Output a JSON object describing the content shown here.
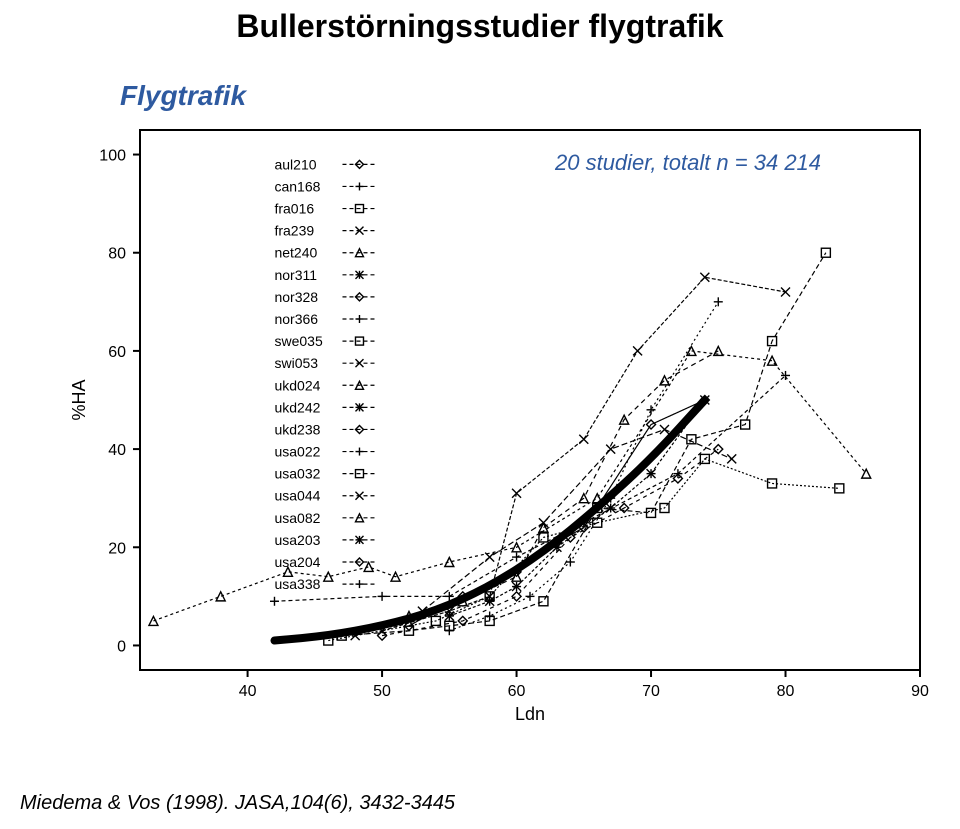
{
  "title": {
    "text": "Bullerstörningsstudier flygtrafik",
    "fontsize": 32,
    "color": "#000000",
    "weight": "bold"
  },
  "subtitle": {
    "text": "Flygtrafik",
    "fontsize": 28,
    "color": "#2e5aa0",
    "style": "italic bold"
  },
  "note": {
    "text": "20 studier, totalt n = 34 214",
    "fontsize": 22,
    "color": "#2e5aa0",
    "style": "italic"
  },
  "citation": {
    "text": "Miedema & Vos (1998). JASA,104(6), 3432-3445",
    "fontsize": 20,
    "color": "#000000",
    "style": "italic"
  },
  "chart": {
    "type": "line-scatter",
    "background_color": "#ffffff",
    "axis_color": "#000000",
    "tick_color": "#000000",
    "tick_fontsize": 16,
    "label_fontsize": 18,
    "xlabel": "Ldn",
    "ylabel": "%HA",
    "xlim": [
      32,
      90
    ],
    "ylim": [
      -5,
      105
    ],
    "xticks": [
      40,
      50,
      60,
      70,
      80,
      90
    ],
    "yticks": [
      0,
      20,
      40,
      60,
      80,
      100
    ],
    "legend": {
      "x": 42,
      "y_top": 98,
      "line_spacing": 4.5,
      "fontsize": 14,
      "color": "#000000",
      "items": [
        {
          "label": "aul210",
          "marker": "diamond"
        },
        {
          "label": "can168",
          "marker": "plus"
        },
        {
          "label": "fra016",
          "marker": "square"
        },
        {
          "label": "fra239",
          "marker": "xmark"
        },
        {
          "label": "net240",
          "marker": "triangle"
        },
        {
          "label": "nor311",
          "marker": "asterisk"
        },
        {
          "label": "nor328",
          "marker": "diamond"
        },
        {
          "label": "nor366",
          "marker": "plus"
        },
        {
          "label": "swe035",
          "marker": "square"
        },
        {
          "label": "swi053",
          "marker": "xmark"
        },
        {
          "label": "ukd024",
          "marker": "triangle"
        },
        {
          "label": "ukd242",
          "marker": "asterisk"
        },
        {
          "label": "ukd238",
          "marker": "diamond"
        },
        {
          "label": "usa022",
          "marker": "plus"
        },
        {
          "label": "usa032",
          "marker": "square"
        },
        {
          "label": "usa044",
          "marker": "xmark"
        },
        {
          "label": "usa082",
          "marker": "triangle"
        },
        {
          "label": "usa203",
          "marker": "asterisk"
        },
        {
          "label": "usa204",
          "marker": "diamond"
        },
        {
          "label": "usa338",
          "marker": "plus"
        }
      ]
    },
    "series": [
      {
        "marker": "triangle",
        "dash": "3,3",
        "points": [
          [
            33,
            5
          ],
          [
            38,
            10
          ],
          [
            43,
            15
          ],
          [
            46,
            14
          ],
          [
            49,
            16
          ],
          [
            51,
            14
          ],
          [
            55,
            17
          ],
          [
            60,
            20
          ],
          [
            66,
            30
          ],
          [
            73,
            60
          ],
          [
            79,
            58
          ],
          [
            86,
            35
          ]
        ]
      },
      {
        "marker": "plus",
        "dash": "4,3",
        "points": [
          [
            42,
            9
          ],
          [
            50,
            10
          ],
          [
            55,
            10
          ],
          [
            60,
            18
          ],
          [
            65,
            25
          ],
          [
            72,
            35
          ],
          [
            80,
            55
          ]
        ]
      },
      {
        "marker": "square",
        "dash": "5,3",
        "points": [
          [
            47,
            2
          ],
          [
            52,
            3
          ],
          [
            55,
            4
          ],
          [
            58,
            5
          ],
          [
            62,
            9
          ],
          [
            66,
            28
          ],
          [
            70,
            27
          ],
          [
            73,
            42
          ],
          [
            77,
            45
          ],
          [
            79,
            62
          ],
          [
            83,
            80
          ]
        ]
      },
      {
        "marker": "xmark",
        "dash": "4,2",
        "points": [
          [
            50,
            3
          ],
          [
            55,
            7
          ],
          [
            58,
            10
          ],
          [
            60,
            31
          ],
          [
            65,
            42
          ],
          [
            69,
            60
          ],
          [
            74,
            75
          ],
          [
            80,
            72
          ]
        ]
      },
      {
        "marker": "diamond",
        "dash": "1,0",
        "points": [
          [
            52,
            4
          ],
          [
            56,
            10
          ],
          [
            60,
            15
          ],
          [
            63,
            21
          ],
          [
            65,
            24
          ],
          [
            70,
            45
          ],
          [
            74,
            50
          ]
        ]
      },
      {
        "marker": "asterisk",
        "dash": "3,2",
        "points": [
          [
            55,
            6
          ],
          [
            58,
            9
          ],
          [
            60,
            12
          ],
          [
            63,
            20
          ],
          [
            67,
            28
          ],
          [
            70,
            35
          ],
          [
            74,
            50
          ]
        ]
      },
      {
        "marker": "square",
        "dash": "2,2",
        "points": [
          [
            46,
            1
          ],
          [
            54,
            5
          ],
          [
            58,
            10
          ],
          [
            62,
            22
          ],
          [
            66,
            25
          ],
          [
            71,
            28
          ],
          [
            74,
            38
          ],
          [
            79,
            33
          ],
          [
            84,
            32
          ]
        ]
      },
      {
        "marker": "xmark",
        "dash": "6,3",
        "points": [
          [
            48,
            2
          ],
          [
            53,
            7
          ],
          [
            58,
            18
          ],
          [
            62,
            25
          ],
          [
            67,
            40
          ],
          [
            71,
            44
          ],
          [
            76,
            38
          ]
        ]
      },
      {
        "marker": "triangle",
        "dash": "5,4",
        "points": [
          [
            52,
            6
          ],
          [
            56,
            9
          ],
          [
            60,
            14
          ],
          [
            62,
            24
          ],
          [
            65,
            30
          ],
          [
            68,
            46
          ],
          [
            71,
            54
          ],
          [
            75,
            60
          ]
        ]
      },
      {
        "marker": "plus",
        "dash": "2,3",
        "points": [
          [
            55,
            3
          ],
          [
            58,
            6
          ],
          [
            61,
            10
          ],
          [
            64,
            17
          ],
          [
            67,
            30
          ],
          [
            70,
            48
          ],
          [
            75,
            70
          ]
        ]
      },
      {
        "marker": "diamond",
        "dash": "4,4",
        "points": [
          [
            50,
            2
          ],
          [
            56,
            5
          ],
          [
            60,
            10
          ],
          [
            64,
            22
          ],
          [
            68,
            28
          ],
          [
            72,
            34
          ],
          [
            75,
            40
          ]
        ]
      }
    ],
    "main_curve": {
      "color": "#000000",
      "width": 8,
      "points": [
        [
          42,
          1
        ],
        [
          46,
          2
        ],
        [
          50,
          4
        ],
        [
          54,
          7
        ],
        [
          58,
          12
        ],
        [
          62,
          19
        ],
        [
          66,
          28
        ],
        [
          70,
          38
        ],
        [
          74,
          50
        ]
      ]
    }
  }
}
